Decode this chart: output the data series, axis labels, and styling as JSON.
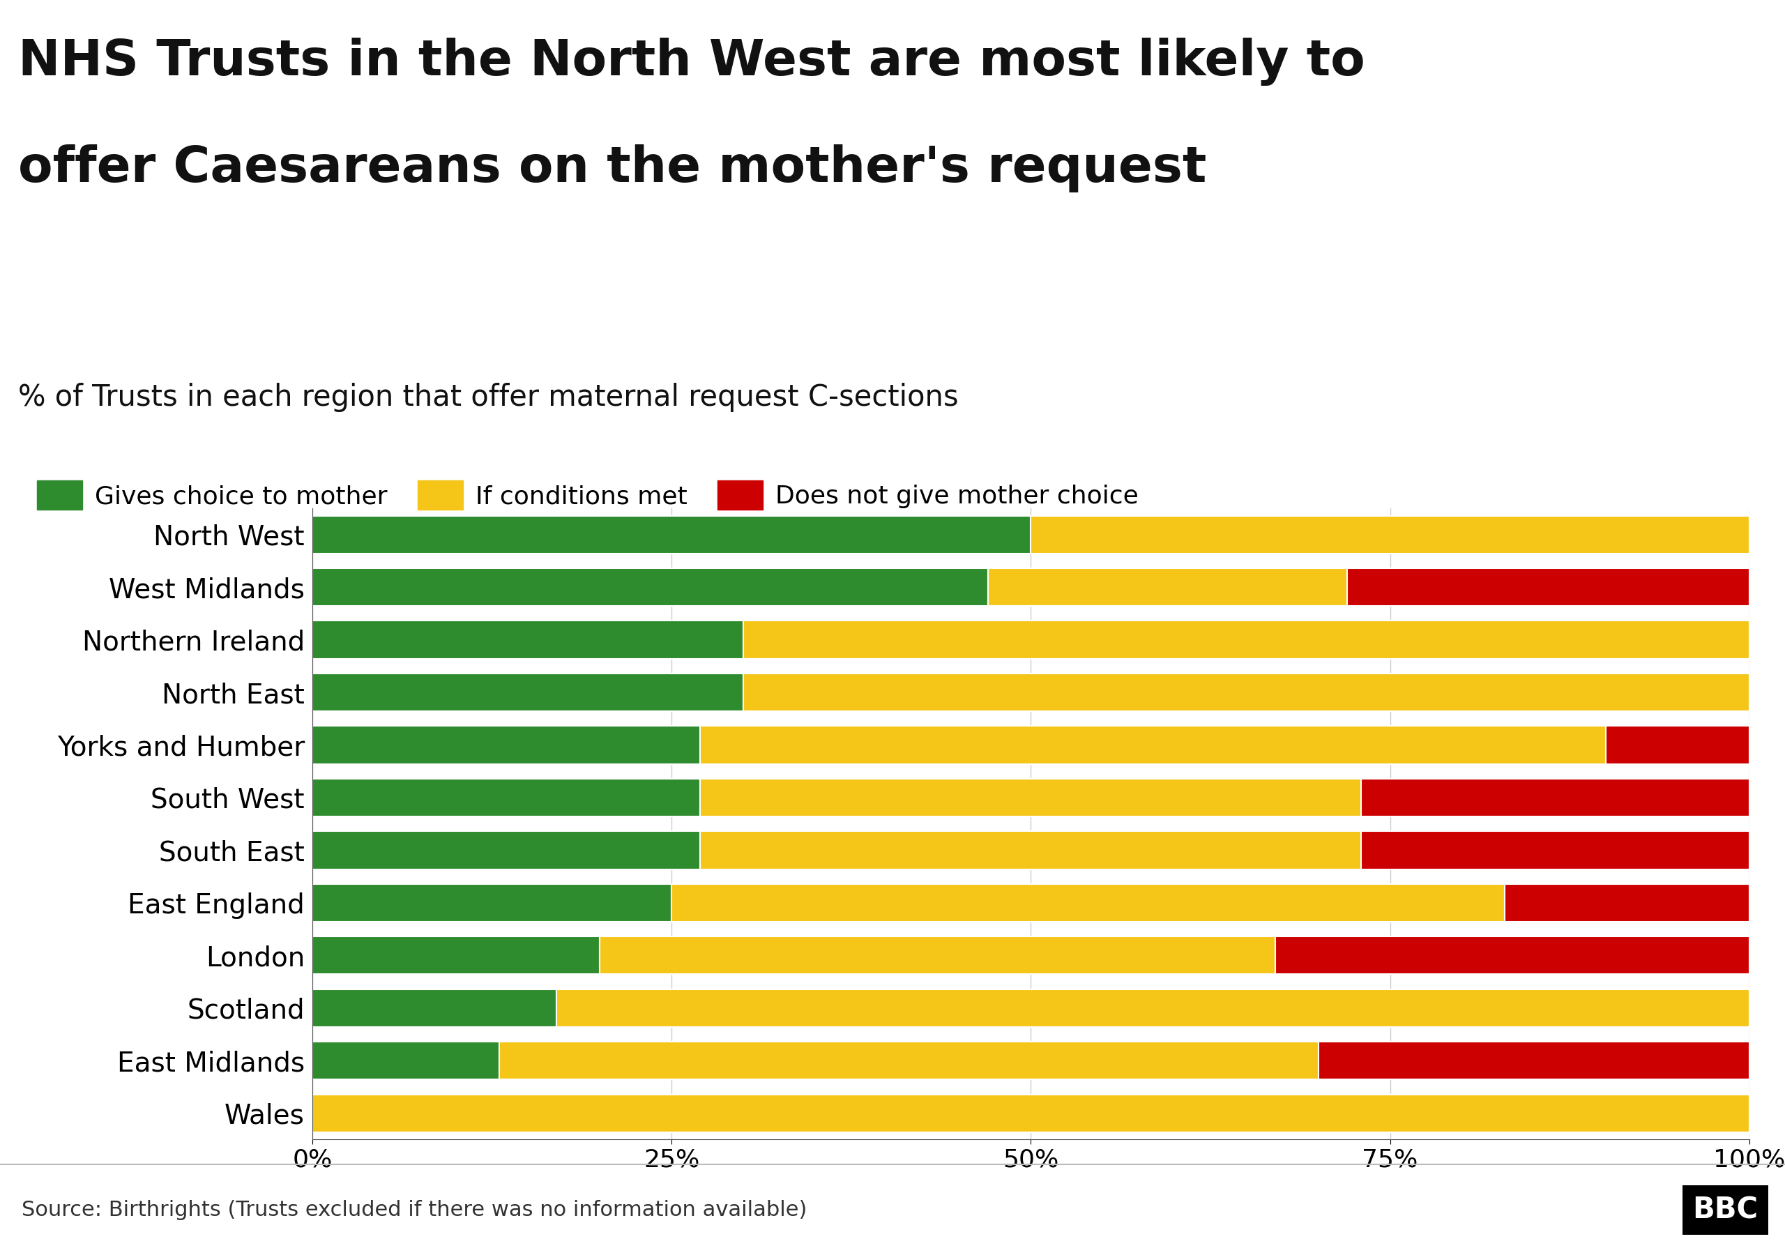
{
  "title_line1": "NHS Trusts in the North West are most likely to",
  "title_line2": "offer Caesareans on the mother's request",
  "subtitle": "% of Trusts in each region that offer maternal request C-sections",
  "source": "Source: Birthrights (Trusts excluded if there was no information available)",
  "categories": [
    "North West",
    "West Midlands",
    "Northern Ireland",
    "North East",
    "Yorks and Humber",
    "South West",
    "South East",
    "East England",
    "London",
    "Scotland",
    "East Midlands",
    "Wales"
  ],
  "green": [
    50,
    47,
    30,
    30,
    27,
    27,
    27,
    25,
    20,
    17,
    13,
    0
  ],
  "yellow": [
    50,
    25,
    70,
    70,
    63,
    46,
    46,
    58,
    47,
    83,
    57,
    100
  ],
  "red": [
    0,
    28,
    0,
    0,
    10,
    27,
    27,
    17,
    33,
    0,
    30,
    0
  ],
  "green_color": "#2e8b2e",
  "yellow_color": "#f5c518",
  "red_color": "#cc0000",
  "legend_labels": [
    "Gives choice to mother",
    "If conditions met",
    "Does not give mother choice"
  ],
  "background_color": "#ffffff",
  "source_bg_color": "#e8e8e8",
  "title_fontsize": 52,
  "subtitle_fontsize": 30,
  "tick_fontsize": 26,
  "label_fontsize": 28,
  "source_fontsize": 22,
  "legend_fontsize": 26
}
